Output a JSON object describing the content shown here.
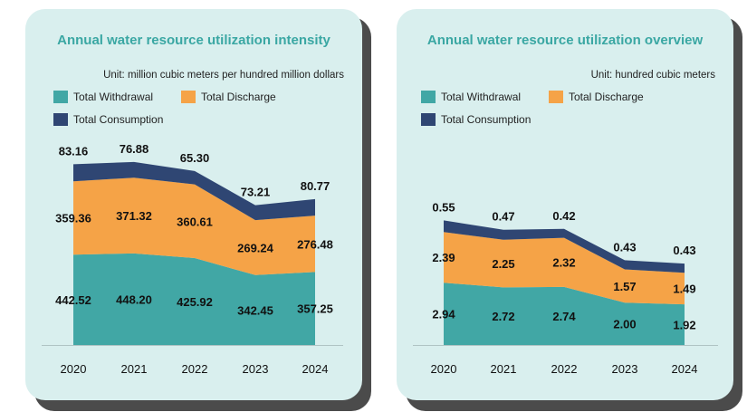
{
  "colors": {
    "withdrawal": "#41a7a5",
    "discharge": "#f5a347",
    "consumption": "#2f4673",
    "title": "#3aa7a3",
    "card": "#d9efee"
  },
  "chart_data": [
    {
      "type": "area",
      "stacked": true,
      "title": "Annual water resource utilization intensity",
      "unit": "Unit: million cubic meters per hundred million dollars",
      "categories": [
        "2020",
        "2021",
        "2022",
        "2023",
        "2024"
      ],
      "series": [
        {
          "name": "Total Withdrawal",
          "values": [
            442.52,
            448.2,
            425.92,
            342.45,
            357.25
          ],
          "labels": [
            "442.52",
            "448.20",
            "425.92",
            "342.45",
            "357.25"
          ]
        },
        {
          "name": "Total Discharge",
          "values": [
            359.36,
            371.32,
            360.61,
            269.24,
            276.48
          ],
          "labels": [
            "359.36",
            "371.32",
            "360.61",
            "269.24",
            "276.48"
          ]
        },
        {
          "name": "Total Consumption",
          "values": [
            83.16,
            76.88,
            65.3,
            73.21,
            80.77
          ],
          "labels": [
            "83.16",
            "76.88",
            "65.30",
            "73.21",
            "80.77"
          ]
        }
      ],
      "legend_position": "top-left",
      "grid": false
    },
    {
      "type": "area",
      "stacked": true,
      "title": "Annual water resource utilization overview",
      "unit": "Unit: hundred cubic meters",
      "categories": [
        "2020",
        "2021",
        "2022",
        "2023",
        "2024"
      ],
      "series": [
        {
          "name": "Total Withdrawal",
          "values": [
            2.94,
            2.72,
            2.74,
            2.0,
            1.92
          ],
          "labels": [
            "2.94",
            "2.72",
            "2.74",
            "2.00",
            "1.92"
          ]
        },
        {
          "name": "Total Discharge",
          "values": [
            2.39,
            2.25,
            2.32,
            1.57,
            1.49
          ],
          "labels": [
            "2.39",
            "2.25",
            "2.32",
            "1.57",
            "1.49"
          ]
        },
        {
          "name": "Total Consumption",
          "values": [
            0.55,
            0.47,
            0.42,
            0.43,
            0.43
          ],
          "labels": [
            "0.55",
            "0.47",
            "0.42",
            "0.43",
            "0.43"
          ]
        }
      ],
      "legend_position": "top-left",
      "grid": false
    }
  ]
}
